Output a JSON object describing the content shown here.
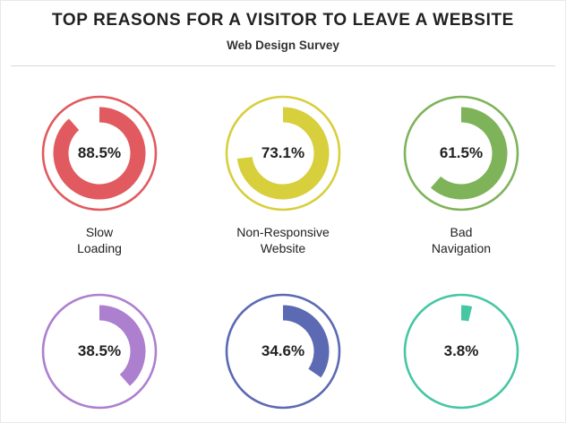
{
  "header": {
    "title": "TOP REASONS FOR A VISITOR TO LEAVE A WEBSITE",
    "subtitle": "Web Design Survey"
  },
  "chart_data": {
    "type": "donut",
    "title": "TOP REASONS FOR A VISITOR TO LEAVE A WEBSITE",
    "subtitle": "Web Design Survey",
    "unit": "%",
    "items": [
      {
        "label": "Slow\nLoading",
        "value": 88.5,
        "value_label": "88.5%",
        "color": "#e15a5f"
      },
      {
        "label": "Non-Responsive\nWebsite",
        "value": 73.1,
        "value_label": "73.1%",
        "color": "#d7cf3c"
      },
      {
        "label": "Bad\nNavigation",
        "value": 61.5,
        "value_label": "61.5%",
        "color": "#7fb35a"
      },
      {
        "label": "",
        "value": 38.5,
        "value_label": "38.5%",
        "color": "#ad7fcf"
      },
      {
        "label": "",
        "value": 34.6,
        "value_label": "34.6%",
        "color": "#5c69b3"
      },
      {
        "label": "",
        "value": 3.8,
        "value_label": "3.8%",
        "color": "#46c6a4"
      }
    ]
  }
}
